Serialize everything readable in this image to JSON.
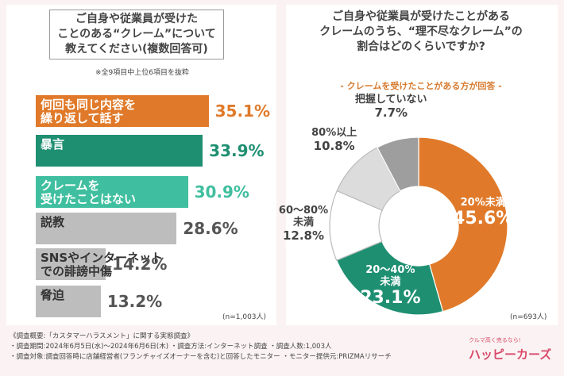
{
  "chart_data": [
    {
      "type": "hbar",
      "title": "ご自身や従業員が受けた\nことのある“クレーム”について\n教えてください(複数回答可)",
      "note": "※全9項目中上位6項目を抜粋",
      "categories": [
        "何回も同じ内容を\n繰り返して話す",
        "暴言",
        "クレームを\n受けたことはない",
        "説教",
        "SNSやインターネット\nでの誹謗中傷",
        "脅迫"
      ],
      "values": [
        35.1,
        33.9,
        30.9,
        28.6,
        14.2,
        13.2
      ],
      "value_labels": [
        "35.1%",
        "33.9%",
        "30.9%",
        "28.6%",
        "14.2%",
        "13.2%"
      ],
      "colors": [
        "#e07a2a",
        "#1f8f72",
        "#3fbf9f",
        "#bdbdbd",
        "#bdbdbd",
        "#bdbdbd"
      ],
      "sample_size": "(n=1,003人)"
    },
    {
      "type": "donut",
      "title": "ご自身や従業員が受けたことがある\nクレームのうち、“理不尽なクレーム”の\n割合はどのくらいですか?",
      "subtitle": "- クレームを受けたことがある方が回答 -",
      "categories": [
        "20%未満",
        "20〜40%\n未満",
        "60〜80%\n未満",
        "80%以上",
        "把握していない"
      ],
      "values": [
        45.6,
        23.1,
        12.8,
        10.8,
        7.7
      ],
      "value_labels": [
        "45.6%",
        "23.1%",
        "12.8%",
        "10.8%",
        "7.7%"
      ],
      "colors": [
        "#e07a2a",
        "#1f8f72",
        "#ffffff",
        "#dcdcdc",
        "#9e9e9e"
      ],
      "sample_size": "(n=693人)"
    }
  ],
  "footer": {
    "lines": [
      "《調査概要:「カスタマーハラスメント」に関する実態調査》",
      "・調査期間:2024年6月5日(水)〜2024年6月6日(木)  ・調査方法:インターネット調査  ・調査人数:1,003人",
      "・調査対象:調査回答時に店舗経営者(フランチャイズオーナーを含む)と回答したモニター  ・モニター提供元:PRIZMAリサーチ"
    ]
  },
  "logo": {
    "tagline": "クルマ高く売るなら!",
    "name": "ハッピーカーズ"
  }
}
